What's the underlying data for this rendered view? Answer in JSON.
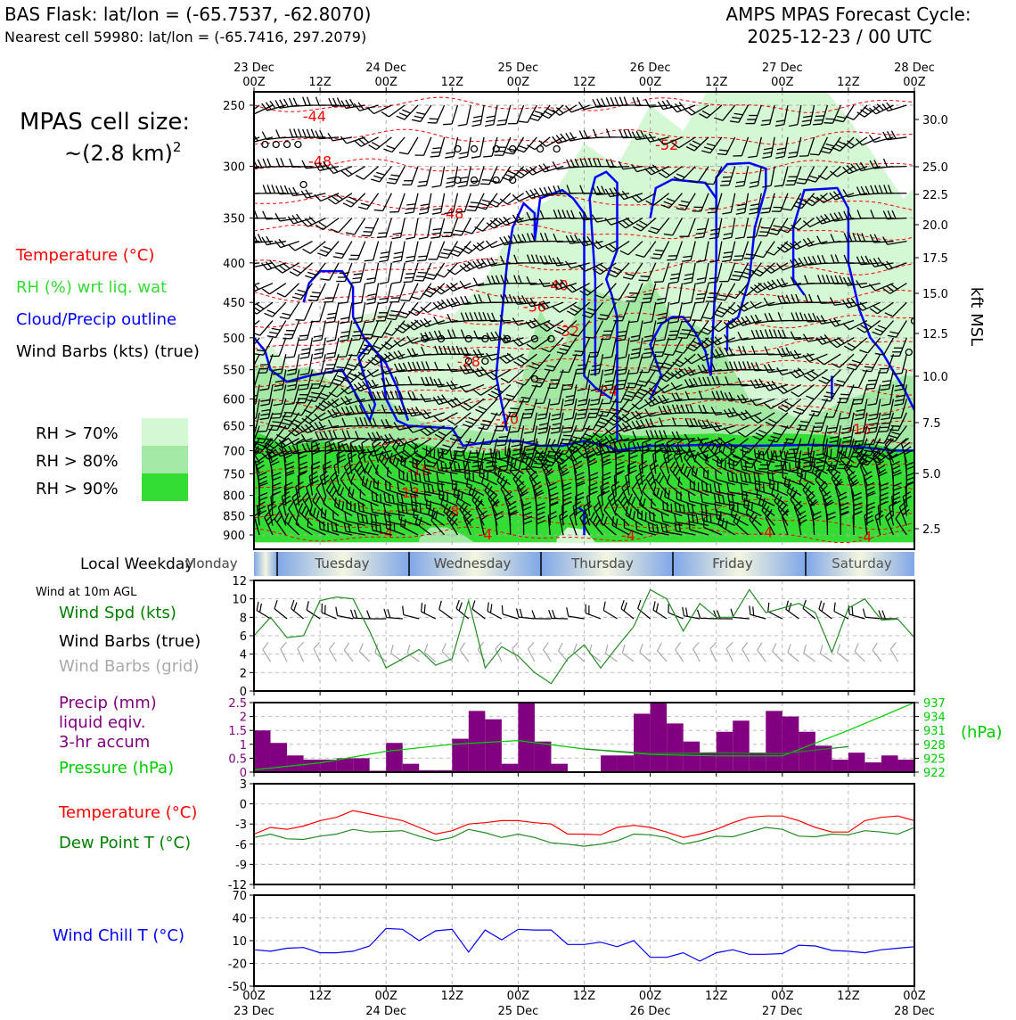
{
  "header": {
    "title_left": "BAS Flask: lat/lon = (-65.7537, -62.8070)",
    "subtitle_left": "Nearest cell 59980: lat/lon = (-65.7416, 297.2079)",
    "title_right_1": "AMPS MPAS Forecast Cycle:",
    "title_right_2": "2025-12-23 / 00 UTC"
  },
  "legend": {
    "cell_size_1": "MPAS cell size:",
    "cell_size_2": "~(2.8 km)",
    "cell_size_sup": "2",
    "temperature": "Temperature (°C)",
    "rh": "RH (%) wrt liq. wat",
    "cloud": "Cloud/Precip outline",
    "wind": "Wind Barbs (kts) (true)",
    "rh70": "RH > 70%",
    "rh80": "RH > 80%",
    "rh90": "RH > 90%",
    "colors": {
      "temperature": "#ff0000",
      "rh_label": "#33dd33",
      "cloud": "#0000ff",
      "rh70": "#d4f7d4",
      "rh80": "#a3e9a3",
      "rh90": "#33dd33"
    }
  },
  "time_axis": {
    "top_labels": [
      {
        "day": "23 Dec",
        "hour": "00Z"
      },
      {
        "day": "",
        "hour": "12Z"
      },
      {
        "day": "24 Dec",
        "hour": "00Z"
      },
      {
        "day": "",
        "hour": "12Z"
      },
      {
        "day": "25 Dec",
        "hour": "00Z"
      },
      {
        "day": "",
        "hour": "12Z"
      },
      {
        "day": "26 Dec",
        "hour": "00Z"
      },
      {
        "day": "",
        "hour": "12Z"
      },
      {
        "day": "27 Dec",
        "hour": "00Z"
      },
      {
        "day": "",
        "hour": "12Z"
      },
      {
        "day": "28 Dec",
        "hour": "00Z"
      }
    ]
  },
  "weekday": {
    "label": "Local Weekday",
    "days": [
      "Monday",
      "Tuesday",
      "Wednesday",
      "Thursday",
      "Friday",
      "Saturday"
    ]
  },
  "surface": {
    "wind_header": "Wind at 10m AGL",
    "wind_spd": "Wind Spd (kts)",
    "barbs_true": "Wind Barbs (true)",
    "barbs_grid": "Wind Barbs (grid)",
    "precip_1": "Precip (mm)",
    "precip_2": "liquid eqiv.",
    "precip_3": "3-hr accum",
    "pressure": "Pressure (hPa)",
    "hpa": "(hPa)",
    "temp": "Temperature (°C)",
    "dew": "Dew Point T (°C)",
    "chill": "Wind Chill T (°C)"
  },
  "chart_data": [
    {
      "type": "heatmap",
      "title": "",
      "ylabel": "",
      "ylabel_right": "kft MSL",
      "x_range_hours": [
        0,
        120
      ],
      "pressure_ticks": [
        250,
        300,
        350,
        400,
        450,
        500,
        550,
        600,
        650,
        700,
        750,
        800,
        850,
        900
      ],
      "kft_ticks": [
        30.0,
        25.0,
        22.5,
        20.0,
        17.5,
        15.0,
        12.5,
        10.0,
        7.5,
        5.0,
        2.5
      ],
      "temperature_contour_labels": [
        {
          "t_hours": 11,
          "p": 258,
          "label": "-44"
        },
        {
          "t_hours": 12,
          "p": 295,
          "label": "-48"
        },
        {
          "t_hours": 36,
          "p": 345,
          "label": "-48"
        },
        {
          "t_hours": 75,
          "p": 281,
          "label": "-52"
        },
        {
          "t_hours": 55,
          "p": 427,
          "label": "-40"
        },
        {
          "t_hours": 51,
          "p": 455,
          "label": "-36"
        },
        {
          "t_hours": 57,
          "p": 490,
          "label": "-32"
        },
        {
          "t_hours": 39,
          "p": 536,
          "label": "-28"
        },
        {
          "t_hours": 64,
          "p": 585,
          "label": "-24"
        },
        {
          "t_hours": 46,
          "p": 636,
          "label": "-20"
        },
        {
          "t_hours": 110,
          "p": 656,
          "label": "-16"
        },
        {
          "t_hours": 30,
          "p": 741,
          "label": "-16"
        },
        {
          "t_hours": 28,
          "p": 792,
          "label": "-12"
        },
        {
          "t_hours": 36,
          "p": 838,
          "label": "-8"
        },
        {
          "t_hours": 24,
          "p": 893,
          "label": "-4"
        },
        {
          "t_hours": 42,
          "p": 898,
          "label": "-4"
        },
        {
          "t_hours": 68,
          "p": 900,
          "label": "-4"
        },
        {
          "t_hours": 93,
          "p": 892,
          "label": "-4"
        },
        {
          "t_hours": 111,
          "p": 903,
          "label": "-4"
        }
      ]
    },
    {
      "type": "line",
      "title": "",
      "x_range_hours": [
        0,
        120
      ],
      "ylim": [
        0,
        12
      ],
      "yticks": [
        0,
        2,
        4,
        6,
        8,
        10,
        12
      ],
      "series": [
        {
          "name": "Wind Spd (kts)",
          "color": "#228b22",
          "x": [
            0,
            3,
            6,
            9,
            12,
            15,
            18,
            21,
            24,
            27,
            30,
            33,
            36,
            39,
            42,
            45,
            48,
            51,
            54,
            57,
            60,
            63,
            66,
            69,
            72,
            75,
            78,
            81,
            84,
            87,
            90,
            93,
            96,
            99,
            102,
            105,
            108,
            111,
            114,
            117,
            120
          ],
          "values": [
            6,
            8,
            5.8,
            6,
            9.8,
            10.2,
            10,
            6.5,
            2.5,
            3.5,
            4.5,
            2.8,
            3.5,
            9.8,
            2.5,
            4.8,
            3.8,
            2,
            0.8,
            3.5,
            5,
            2.5,
            4.8,
            7,
            11,
            10,
            6.5,
            9.5,
            8,
            8,
            11,
            8.5,
            9,
            9.5,
            8.5,
            4.2,
            9,
            10,
            7.7,
            7.8,
            5.8
          ]
        }
      ]
    },
    {
      "type": "bar",
      "title": "",
      "x_range_hours": [
        0,
        120
      ],
      "ylim": [
        0,
        2.5
      ],
      "yticks": [
        0,
        0.5,
        1.0,
        1.5,
        2.0,
        2.5
      ],
      "bar_centers_hours": [
        1.5,
        4.5,
        7.5,
        10.5,
        13.5,
        16.5,
        19.5,
        22.5,
        25.5,
        28.5,
        31.5,
        34.5,
        37.5,
        40.5,
        43.5,
        46.5,
        49.5,
        52.5,
        55.5,
        58.5,
        61.5,
        64.5,
        67.5,
        70.5,
        73.5,
        76.5,
        79.5,
        82.5,
        85.5,
        88.5,
        91.5,
        94.5,
        97.5,
        100.5,
        103.5,
        106.5,
        109.5,
        112.5,
        115.5,
        118.5
      ],
      "values": [
        1.5,
        1.05,
        0.6,
        0.45,
        0.45,
        0.5,
        0.5,
        0.05,
        1.05,
        0.3,
        0.07,
        0.07,
        1.2,
        2.2,
        1.9,
        0.3,
        2.5,
        1.1,
        0.3,
        0,
        0.03,
        0.6,
        0.6,
        2.1,
        2.5,
        1.75,
        1.1,
        0.7,
        1.45,
        1.85,
        0.7,
        2.2,
        2.0,
        1.45,
        0.95,
        0.45,
        0.7,
        0.35,
        0.6,
        0.45
      ],
      "series_color": "#800080",
      "pressure_axis": {
        "ylim": [
          922,
          937
        ],
        "yticks": [
          922,
          925,
          928,
          931,
          934,
          937
        ]
      },
      "pressure_series": {
        "name": "Pressure (hPa)",
        "color": "#00cc00",
        "x": [
          0,
          12,
          24,
          36,
          48,
          60,
          72,
          84,
          96,
          108,
          120
        ],
        "values": [
          922.5,
          924,
          926.5,
          928,
          928.8,
          927,
          925.8,
          925.5,
          925.5,
          931,
          937
        ]
      },
      "pressure_series_2": {
        "color": "#228b22",
        "x": [
          60,
          72,
          84,
          96,
          108
        ],
        "values": [
          927,
          926,
          926.2,
          926,
          927.5
        ]
      }
    },
    {
      "type": "line",
      "title": "",
      "x_range_hours": [
        0,
        120
      ],
      "ylim": [
        -12,
        3
      ],
      "yticks": [
        -12,
        -9,
        -6,
        -3,
        0,
        3
      ],
      "series": [
        {
          "name": "Temperature (°C)",
          "color": "#ff0000",
          "x": [
            0,
            3,
            6,
            9,
            12,
            15,
            18,
            21,
            24,
            27,
            30,
            33,
            36,
            39,
            42,
            45,
            48,
            51,
            54,
            57,
            60,
            63,
            66,
            69,
            72,
            75,
            78,
            81,
            84,
            87,
            90,
            93,
            96,
            99,
            102,
            105,
            108,
            111,
            114,
            117,
            120
          ],
          "values": [
            -4.5,
            -3.5,
            -3.8,
            -3.3,
            -2.5,
            -2,
            -1,
            -1.5,
            -2,
            -2.5,
            -3.5,
            -4.5,
            -4,
            -3,
            -2.8,
            -2.5,
            -2.5,
            -2.8,
            -3,
            -4.5,
            -4.5,
            -4.6,
            -3.5,
            -3.2,
            -3.5,
            -4.2,
            -5,
            -4.5,
            -3.8,
            -2.8,
            -2,
            -1.8,
            -1.8,
            -2.5,
            -3.5,
            -4.2,
            -4.2,
            -2.5,
            -2,
            -1.8,
            -2.5
          ]
        },
        {
          "name": "Dew Point T (°C)",
          "color": "#228b22",
          "x": [
            0,
            3,
            6,
            9,
            12,
            15,
            18,
            21,
            24,
            27,
            30,
            33,
            36,
            39,
            42,
            45,
            48,
            51,
            54,
            57,
            60,
            63,
            66,
            69,
            72,
            75,
            78,
            81,
            84,
            87,
            90,
            93,
            96,
            99,
            102,
            105,
            108,
            111,
            114,
            117,
            120
          ],
          "values": [
            -5,
            -4.5,
            -5.2,
            -5.3,
            -4.8,
            -4.5,
            -3.8,
            -4.2,
            -4.1,
            -4,
            -4.8,
            -5.5,
            -5,
            -3.8,
            -4.3,
            -5,
            -4.5,
            -5,
            -5.8,
            -6,
            -6.3,
            -6,
            -5.5,
            -4.5,
            -4.6,
            -5,
            -6,
            -5.5,
            -4.8,
            -4.9,
            -4.2,
            -3.5,
            -3.8,
            -4.8,
            -4.9,
            -4.5,
            -4.6,
            -4,
            -4.2,
            -4.5,
            -3.5
          ]
        }
      ]
    },
    {
      "type": "line",
      "title": "",
      "x_range_hours": [
        0,
        120
      ],
      "ylim": [
        -50,
        70
      ],
      "yticks": [
        -50,
        -20,
        10,
        40,
        70
      ],
      "series": [
        {
          "name": "Wind Chill T (°C)",
          "color": "#0000ff",
          "x": [
            0,
            3,
            6,
            9,
            12,
            15,
            18,
            21,
            24,
            27,
            30,
            33,
            36,
            39,
            42,
            45,
            48,
            51,
            54,
            57,
            60,
            63,
            66,
            69,
            72,
            75,
            78,
            81,
            84,
            87,
            90,
            93,
            96,
            99,
            102,
            105,
            108,
            111,
            114,
            117,
            120
          ],
          "values": [
            -2,
            -4,
            0,
            1,
            -6,
            -6,
            -4,
            3,
            26,
            25,
            10,
            23,
            25,
            -5,
            24,
            11,
            25,
            24,
            24,
            5,
            5,
            8,
            2,
            10,
            -12,
            -12,
            -6,
            -17,
            -6,
            -2,
            -8,
            -8,
            -7,
            4,
            3,
            -3,
            -4,
            -6,
            -2,
            0,
            2
          ]
        }
      ]
    }
  ]
}
